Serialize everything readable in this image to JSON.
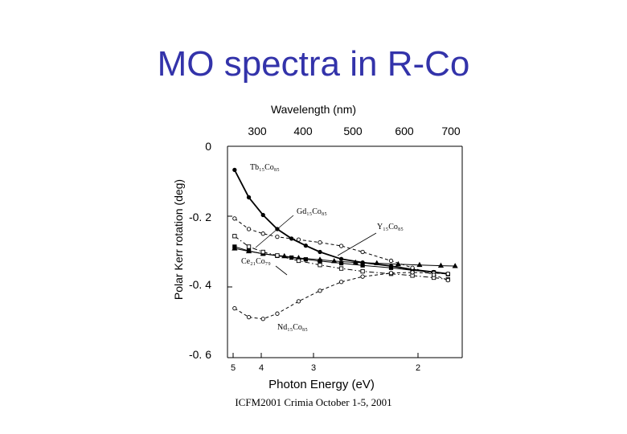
{
  "slide": {
    "title": "MO spectra in R-Co",
    "footer": "ICFM2001 Crimia October 1-5, 2001"
  },
  "chart_data": {
    "type": "line",
    "title": "",
    "xlabel": "Photon Energy (eV)",
    "ylabel": "Polar Kerr rotation (deg)",
    "top_axis_label": "Wavelength (nm)",
    "top_ticks": [
      "300",
      "400",
      "500",
      "600",
      "700"
    ],
    "y_ticks": [
      "0",
      "-0. 2",
      "-0. 4",
      "-0. 6"
    ],
    "bottom_ticks": [
      "5",
      "4",
      "3",
      "2"
    ],
    "xlim": [
      5.0,
      1.7
    ],
    "ylim": [
      0.0,
      -0.6
    ],
    "grid": false,
    "legend": "none (series labelled inline)",
    "series": [
      {
        "name": "Tb₁₅Co₈₅",
        "marker": "filled-circle",
        "line": "solid",
        "x": [
          4.9,
          4.7,
          4.5,
          4.3,
          4.1,
          3.9,
          3.7,
          3.4,
          3.1,
          2.7,
          2.4,
          2.1,
          1.9
        ],
        "y": [
          -0.067,
          -0.145,
          -0.195,
          -0.235,
          -0.262,
          -0.282,
          -0.3,
          -0.32,
          -0.33,
          -0.34,
          -0.35,
          -0.357,
          -0.362
        ]
      },
      {
        "name": "Gd₁₅Co₈₅",
        "marker": "filled-square",
        "line": "solid",
        "x": [
          4.9,
          4.7,
          4.5,
          4.3,
          4.1,
          3.9,
          3.7,
          3.4,
          3.1,
          2.7,
          2.4,
          2.1,
          1.9
        ],
        "y": [
          -0.285,
          -0.297,
          -0.305,
          -0.311,
          -0.316,
          -0.321,
          -0.326,
          -0.332,
          -0.338,
          -0.345,
          -0.352,
          -0.358,
          -0.363
        ]
      },
      {
        "name": "Y₁₅Co₈₅",
        "marker": "filled-triangle",
        "line": "solid",
        "x": [
          4.9,
          4.7,
          4.5,
          4.2,
          4.0,
          3.7,
          3.5,
          3.2,
          2.9,
          2.6,
          2.3,
          2.0,
          1.8
        ],
        "y": [
          -0.29,
          -0.298,
          -0.305,
          -0.312,
          -0.317,
          -0.322,
          -0.326,
          -0.33,
          -0.332,
          -0.335,
          -0.337,
          -0.339,
          -0.34
        ]
      },
      {
        "name": "Ce₂₁Co₇₉",
        "marker": "open-square",
        "line": "dash-dot",
        "x": [
          4.9,
          4.7,
          4.5,
          4.3,
          4.0,
          3.7,
          3.4,
          3.1,
          2.7,
          2.4,
          2.1,
          1.9
        ],
        "y": [
          -0.255,
          -0.285,
          -0.3,
          -0.31,
          -0.325,
          -0.337,
          -0.347,
          -0.355,
          -0.362,
          -0.367,
          -0.373,
          -0.378
        ]
      },
      {
        "name": "Nd₁₅Co₈₅",
        "marker": "open-circle",
        "line": "dashed",
        "x": [
          4.9,
          4.7,
          4.5,
          4.3,
          4.0,
          3.7,
          3.4,
          3.1,
          2.7,
          2.4,
          2.1,
          1.9
        ],
        "y": [
          -0.46,
          -0.485,
          -0.49,
          -0.475,
          -0.44,
          -0.41,
          -0.385,
          -0.37,
          -0.36,
          -0.358,
          -0.36,
          -0.362
        ]
      },
      {
        "name": "Nd₁₅Co₈₅ (upper)",
        "marker": "open-circle",
        "line": "dashed",
        "x": [
          4.9,
          4.7,
          4.5,
          4.3,
          4.0,
          3.7,
          3.4,
          3.1,
          2.7,
          2.4,
          2.1,
          1.9
        ],
        "y": [
          -0.205,
          -0.235,
          -0.248,
          -0.257,
          -0.265,
          -0.273,
          -0.283,
          -0.3,
          -0.325,
          -0.345,
          -0.365,
          -0.38
        ]
      }
    ]
  }
}
